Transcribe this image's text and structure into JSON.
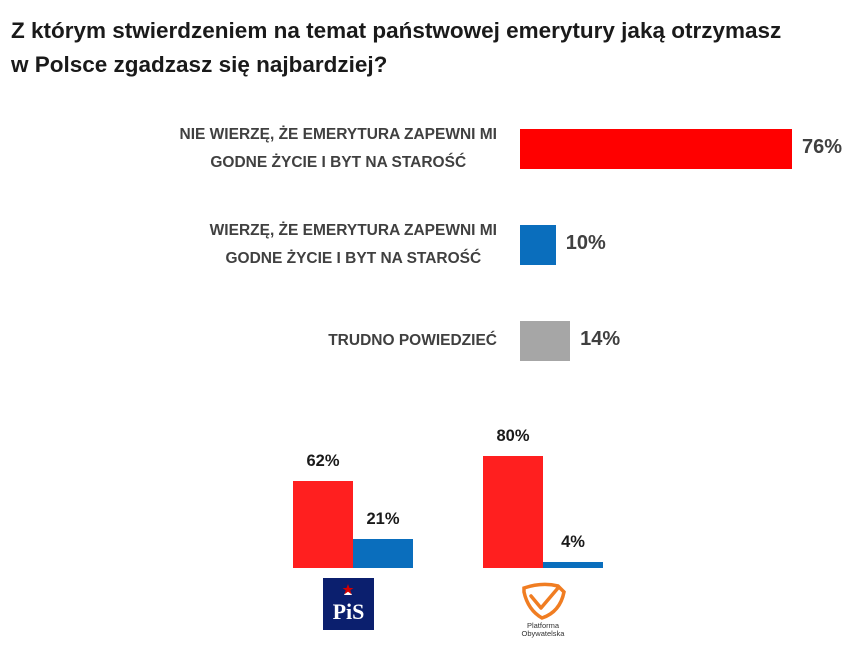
{
  "title": {
    "line1": "Z którym stwierdzeniem na temat państwowej emerytury jaką otrzymasz",
    "line2": "w Polsce zgadzasz się najbardziej?"
  },
  "colors": {
    "red": "#ff0000",
    "blue": "#0a6ebd",
    "gray": "#a6a6a6",
    "bar_red_small": "#ff1f1f",
    "pis_navy": "#0b1f6e",
    "po_orange": "#f07d22"
  },
  "chart_data": [
    {
      "type": "bar",
      "orientation": "horizontal",
      "categories": [
        [
          "NIE WIERZĘ, ŻE EMERYTURA ZAPEWNI MI",
          "GODNE ŻYCIE I BYT NA STAROŚĆ"
        ],
        [
          "WIERZĘ, ŻE EMERYTURA ZAPEWNI MI",
          "GODNE ŻYCIE I BYT NA STAROŚĆ"
        ],
        [
          "TRUDNO POWIEDZIEĆ"
        ]
      ],
      "values": [
        76,
        10,
        14
      ],
      "value_labels": [
        "76%",
        "10%",
        "14%"
      ],
      "bar_colors": [
        "#ff0000",
        "#0a6ebd",
        "#a6a6a6"
      ],
      "unit": "%"
    },
    {
      "type": "bar",
      "orientation": "vertical",
      "groups": [
        {
          "logo": "PiS",
          "values": [
            62,
            21
          ],
          "value_labels": [
            "62%",
            "21%"
          ]
        },
        {
          "logo": "Platforma Obywatelska",
          "values": [
            80,
            4
          ],
          "value_labels": [
            "80%",
            "4%"
          ]
        }
      ],
      "series_colors": [
        "#ff1f1f",
        "#0a6ebd"
      ],
      "unit": "%"
    }
  ],
  "logos": {
    "pis_text": "PiS",
    "po_text_line1": "Platforma",
    "po_text_line2": "Obywatelska"
  }
}
